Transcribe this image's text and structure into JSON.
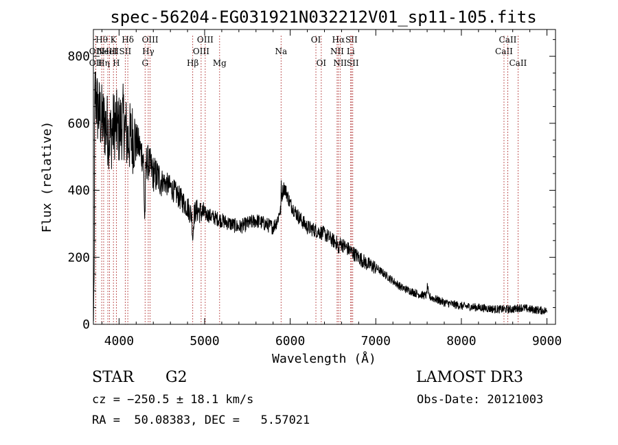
{
  "chart_data": {
    "type": "line",
    "title": "spec-56204-EG031921N032212V01_sp11-105.fits",
    "xlabel": "Wavelength (Å)",
    "ylabel": "Flux (relative)",
    "xlim": [
      3700,
      9100
    ],
    "ylim": [
      0,
      880
    ],
    "xticks": [
      4000,
      5000,
      6000,
      7000,
      8000,
      9000
    ],
    "yticks": [
      0,
      200,
      400,
      600,
      800
    ],
    "spectrum_anchors": {
      "x": [
        3700,
        3720,
        3750,
        3800,
        3850,
        3900,
        3950,
        4000,
        4050,
        4100,
        4150,
        4200,
        4250,
        4300,
        4350,
        4400,
        4500,
        4600,
        4700,
        4800,
        4860,
        4900,
        5000,
        5100,
        5200,
        5300,
        5400,
        5500,
        5600,
        5700,
        5800,
        5850,
        5880,
        5895,
        5905,
        5930,
        5960,
        6000,
        6100,
        6200,
        6300,
        6400,
        6500,
        6563,
        6600,
        6700,
        6800,
        6900,
        7000,
        7100,
        7200,
        7300,
        7400,
        7500,
        7600,
        7700,
        7800,
        8000,
        8200,
        8400,
        8500,
        8600,
        8700,
        8800,
        9000
      ],
      "y": [
        270,
        700,
        640,
        610,
        590,
        560,
        600,
        580,
        610,
        550,
        560,
        550,
        520,
        490,
        480,
        450,
        430,
        410,
        380,
        350,
        320,
        340,
        330,
        320,
        310,
        300,
        290,
        300,
        310,
        300,
        290,
        310,
        340,
        330,
        390,
        410,
        390,
        360,
        320,
        290,
        280,
        270,
        250,
        240,
        240,
        220,
        200,
        180,
        170,
        150,
        130,
        110,
        100,
        90,
        85,
        75,
        65,
        55,
        50,
        45,
        45,
        45,
        50,
        45,
        40
      ]
    },
    "features": [
      {
        "x": 4300,
        "amp": -170,
        "w": 10
      },
      {
        "x": 4862,
        "amp": -60,
        "w": 8
      },
      {
        "x": 5895,
        "amp": 80,
        "w": 4
      },
      {
        "x": 7605,
        "amp": 30,
        "w": 8
      },
      {
        "x": 6563,
        "amp": -30,
        "w": 6
      }
    ],
    "spectral_lines": [
      {
        "x": 3727,
        "label": "OII",
        "row": 2
      },
      {
        "x": 3727,
        "label": "OII",
        "row": 1
      },
      {
        "x": 3797,
        "label": "Hθ",
        "row": 0
      },
      {
        "x": 3820,
        "label": "Hη",
        "row": 2
      },
      {
        "x": 3869,
        "label": "NeIII",
        "row": 1
      },
      {
        "x": 3889,
        "label": "HeI",
        "row": 1
      },
      {
        "x": 3934,
        "label": "K",
        "row": 0
      },
      {
        "x": 3968,
        "label": "H",
        "row": 2
      },
      {
        "x": 4072,
        "label": "SII",
        "row": 1
      },
      {
        "x": 4102,
        "label": "Hδ",
        "row": 0
      },
      {
        "x": 4304,
        "label": "G",
        "row": 2
      },
      {
        "x": 4341,
        "label": "Hγ",
        "row": 1
      },
      {
        "x": 4363,
        "label": "OIII",
        "row": 0
      },
      {
        "x": 4861,
        "label": "Hβ",
        "row": 2
      },
      {
        "x": 4959,
        "label": "OIII",
        "row": 1
      },
      {
        "x": 5007,
        "label": "OIII",
        "row": 0
      },
      {
        "x": 5175,
        "label": "Mg",
        "row": 2
      },
      {
        "x": 5893,
        "label": "Na",
        "row": 1
      },
      {
        "x": 6300,
        "label": "OI",
        "row": 0
      },
      {
        "x": 6363,
        "label": "OI",
        "row": 2
      },
      {
        "x": 6548,
        "label": "NII",
        "row": 1
      },
      {
        "x": 6563,
        "label": "Hα",
        "row": 0
      },
      {
        "x": 6583,
        "label": "NII",
        "row": 2
      },
      {
        "x": 6707,
        "label": "Li",
        "row": 1
      },
      {
        "x": 6716,
        "label": "SII",
        "row": 0
      },
      {
        "x": 6731,
        "label": "SII",
        "row": 2
      },
      {
        "x": 8498,
        "label": "CaII",
        "row": 1
      },
      {
        "x": 8542,
        "label": "CaII",
        "row": 0
      },
      {
        "x": 8662,
        "label": "CaII",
        "row": 2
      }
    ]
  },
  "info": {
    "object_class": "STAR",
    "subclass": "G2",
    "survey": "LAMOST DR3",
    "cz": "cz = −250.5 ± 18.1 km/s",
    "obs_date": "Obs-Date: 20121003",
    "coords": "RA =  50.08383, DEC =   5.57021"
  },
  "colors": {
    "line_marker": "#b03030",
    "spectrum": "#000000"
  }
}
